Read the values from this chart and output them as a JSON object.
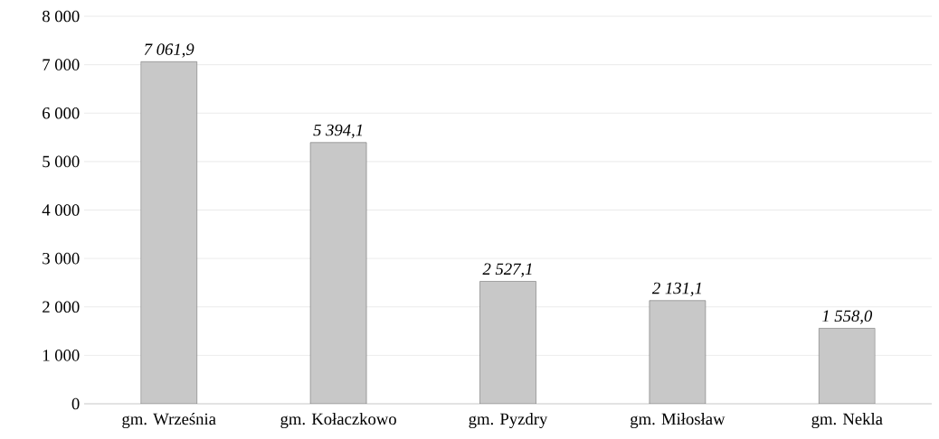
{
  "chart_data": {
    "type": "bar",
    "categories": [
      "gm. Września",
      "gm. Kołaczkowo",
      "gm. Pyzdry",
      "gm. Miłosław",
      "gm. Nekla"
    ],
    "values": [
      7061.9,
      5394.1,
      2527.1,
      2131.1,
      1558.0
    ],
    "value_labels": [
      "7 061,9",
      "5 394,1",
      "2 527,1",
      "2 131,1",
      "1 558,0"
    ],
    "color": "#c8c8c8",
    "ylim": [
      0,
      8000
    ],
    "yticks": [
      {
        "value": 0,
        "label": "0"
      },
      {
        "value": 1000,
        "label": "1 000"
      },
      {
        "value": 2000,
        "label": "2 000"
      },
      {
        "value": 3000,
        "label": "3 000"
      },
      {
        "value": 4000,
        "label": "4 000"
      },
      {
        "value": 5000,
        "label": "5 000"
      },
      {
        "value": 6000,
        "label": "6 000"
      },
      {
        "value": 7000,
        "label": "7 000"
      },
      {
        "value": 8000,
        "label": "8 000"
      }
    ],
    "grid": "y"
  }
}
